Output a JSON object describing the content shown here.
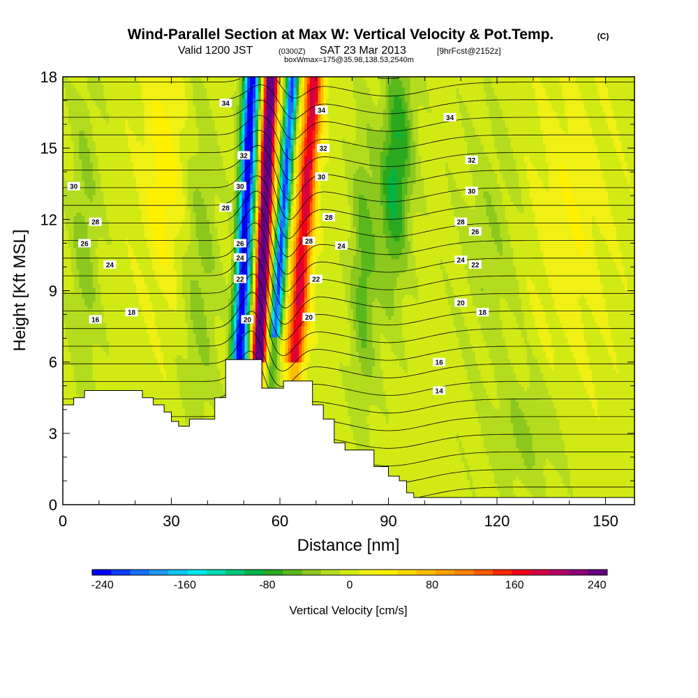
{
  "chart_data": {
    "type": "heatmap",
    "title": "Wind-Parallel Section at Max W: Vertical Velocity & Pot.Temp.",
    "title_mark": "(C)",
    "subtitle": {
      "valid": "Valid 1200 JST",
      "utc": "(0300Z)",
      "date": "SAT 23 Mar 2013",
      "forecast": "[9hrFcst@2152z]"
    },
    "subtitle2": "boxWmax=175@35.98,138.53,2540m",
    "xlabel": "Distance [nm]",
    "ylabel": "Height [Kft MSL]",
    "xlim": [
      0,
      158
    ],
    "ylim": [
      0,
      18
    ],
    "xticks": [
      0,
      30,
      60,
      90,
      120,
      150
    ],
    "yticks": [
      0,
      3,
      6,
      9,
      12,
      15,
      18
    ],
    "colorbar": {
      "label": "Vertical Velocity [cm/s]",
      "range": [
        -250,
        250
      ],
      "ticks": [
        -240,
        -160,
        -80,
        0,
        80,
        160,
        240
      ],
      "colors": [
        "#0000ff",
        "#0a3cff",
        "#1670ff",
        "#1e98f0",
        "#10c4f0",
        "#00e8e8",
        "#00dcb4",
        "#00c878",
        "#00b446",
        "#2aa81e",
        "#5ab81c",
        "#8cc81e",
        "#b4dc1e",
        "#d2ea14",
        "#f0f014",
        "#fff000",
        "#ffd700",
        "#ffbc00",
        "#ffa000",
        "#ff8200",
        "#ff5a00",
        "#ff2800",
        "#f0001e",
        "#d20046",
        "#b40064",
        "#8c0078",
        "#640080"
      ]
    },
    "terrain": [
      [
        0,
        4.2
      ],
      [
        3,
        4.2
      ],
      [
        3,
        4.5
      ],
      [
        6,
        4.5
      ],
      [
        6,
        4.8
      ],
      [
        22,
        4.8
      ],
      [
        22,
        4.5
      ],
      [
        25,
        4.5
      ],
      [
        25,
        4.2
      ],
      [
        28,
        4.2
      ],
      [
        28,
        3.9
      ],
      [
        30,
        3.9
      ],
      [
        30,
        3.5
      ],
      [
        32,
        3.5
      ],
      [
        32,
        3.3
      ],
      [
        35,
        3.3
      ],
      [
        35,
        3.6
      ],
      [
        42,
        3.6
      ],
      [
        42,
        4.5
      ],
      [
        45,
        4.5
      ],
      [
        45,
        6.1
      ],
      [
        55,
        6.1
      ],
      [
        55,
        4.9
      ],
      [
        61,
        4.9
      ],
      [
        61,
        5.2
      ],
      [
        69,
        5.2
      ],
      [
        69,
        4.2
      ],
      [
        72,
        4.2
      ],
      [
        72,
        3.6
      ],
      [
        75,
        3.6
      ],
      [
        75,
        2.6
      ],
      [
        78,
        2.6
      ],
      [
        78,
        2.3
      ],
      [
        86,
        2.3
      ],
      [
        86,
        1.6
      ],
      [
        90,
        1.6
      ],
      [
        90,
        1.2
      ],
      [
        93,
        1.2
      ],
      [
        93,
        1.0
      ],
      [
        95,
        1.0
      ],
      [
        95,
        0.5
      ],
      [
        97,
        0.5
      ],
      [
        97,
        0.3
      ],
      [
        158,
        0.3
      ]
    ],
    "theta_labels": [
      {
        "text": "34",
        "x": 45,
        "y": 16.9
      },
      {
        "text": "34",
        "x": 71.5,
        "y": 16.6
      },
      {
        "text": "34",
        "x": 107,
        "y": 16.3
      },
      {
        "text": "32",
        "x": 50,
        "y": 14.7
      },
      {
        "text": "32",
        "x": 72,
        "y": 15.0
      },
      {
        "text": "32",
        "x": 113,
        "y": 14.5
      },
      {
        "text": "30",
        "x": 3,
        "y": 13.4
      },
      {
        "text": "30",
        "x": 49,
        "y": 13.4
      },
      {
        "text": "30",
        "x": 71.5,
        "y": 13.8
      },
      {
        "text": "30",
        "x": 113,
        "y": 13.2
      },
      {
        "text": "28",
        "x": 45,
        "y": 12.5
      },
      {
        "text": "28",
        "x": 9,
        "y": 11.9
      },
      {
        "text": "28",
        "x": 73.5,
        "y": 12.1
      },
      {
        "text": "28",
        "x": 68,
        "y": 11.1
      },
      {
        "text": "28",
        "x": 110,
        "y": 11.9
      },
      {
        "text": "26",
        "x": 6,
        "y": 11.0
      },
      {
        "text": "26",
        "x": 49,
        "y": 11.0
      },
      {
        "text": "26",
        "x": 114,
        "y": 11.5
      },
      {
        "text": "24",
        "x": 13,
        "y": 10.1
      },
      {
        "text": "24",
        "x": 49,
        "y": 10.4
      },
      {
        "text": "24",
        "x": 77,
        "y": 10.9
      },
      {
        "text": "24",
        "x": 110,
        "y": 10.3
      },
      {
        "text": "22",
        "x": 49,
        "y": 9.5
      },
      {
        "text": "22",
        "x": 70,
        "y": 9.5
      },
      {
        "text": "22",
        "x": 114,
        "y": 10.1
      },
      {
        "text": "20",
        "x": 51,
        "y": 7.8
      },
      {
        "text": "20",
        "x": 68,
        "y": 7.9
      },
      {
        "text": "20",
        "x": 110,
        "y": 8.5
      },
      {
        "text": "18",
        "x": 19,
        "y": 8.1
      },
      {
        "text": "18",
        "x": 116,
        "y": 8.1
      },
      {
        "text": "16",
        "x": 9,
        "y": 7.8
      },
      {
        "text": "16",
        "x": 104,
        "y": 6.0
      },
      {
        "text": "14",
        "x": 104,
        "y": 4.8
      }
    ]
  }
}
